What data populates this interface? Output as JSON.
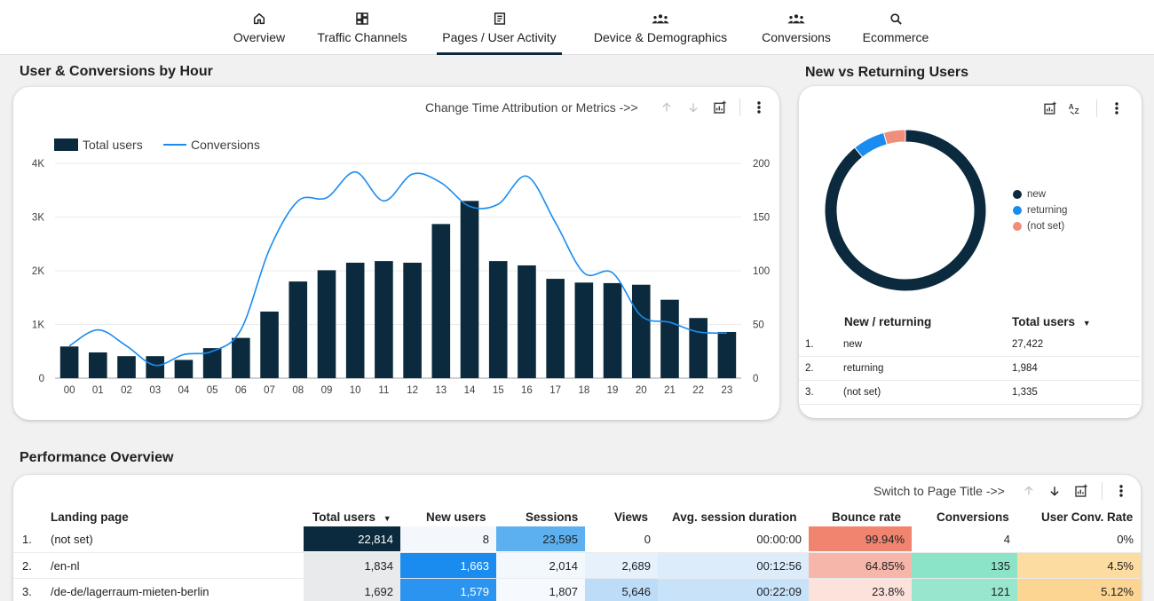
{
  "nav": {
    "tabs": [
      {
        "label": "Overview",
        "icon": "home-icon"
      },
      {
        "label": "Traffic Channels",
        "icon": "dashboard-icon"
      },
      {
        "label": "Pages / User Activity",
        "icon": "article-icon"
      },
      {
        "label": "Device & Demographics",
        "icon": "groups-icon"
      },
      {
        "label": "Conversions",
        "icon": "groups-icon"
      },
      {
        "label": "Ecommerce",
        "icon": "search-icon"
      }
    ],
    "active_index": 2
  },
  "hourly": {
    "title": "User & Conversions by Hour",
    "toolbar_text": "Change Time Attribution or Metrics ->>"
  },
  "donut_section": {
    "title": "New vs Returning Users",
    "table": {
      "col1": "New / returning",
      "col2": "Total users",
      "rows": [
        {
          "rank": "1.",
          "label": "new",
          "value": "27,422"
        },
        {
          "rank": "2.",
          "label": "returning",
          "value": "1,984"
        },
        {
          "rank": "3.",
          "label": "(not set)",
          "value": "1,335"
        }
      ]
    }
  },
  "performance": {
    "title": "Performance Overview",
    "toolbar_text": "Switch to Page Title ->>",
    "columns": [
      "Landing page",
      "Total users",
      "New users",
      "Sessions",
      "Views",
      "Avg. session duration",
      "Bounce rate",
      "Conversions",
      "User Conv. Rate"
    ],
    "rows": [
      {
        "rank": "1.",
        "page": "(not set)",
        "total_users": "22,814",
        "new_users": "8",
        "sessions": "23,595",
        "views": "0",
        "avg_duration": "00:00:00",
        "bounce_rate": "99.94%",
        "conversions": "4",
        "conv_rate": "0%"
      },
      {
        "rank": "2.",
        "page": "/en-nl",
        "total_users": "1,834",
        "new_users": "1,663",
        "sessions": "2,014",
        "views": "2,689",
        "avg_duration": "00:12:56",
        "bounce_rate": "64.85%",
        "conversions": "135",
        "conv_rate": "4.5%"
      },
      {
        "rank": "3.",
        "page": "/de-de/lagerraum-mieten-berlin",
        "total_users": "1,692",
        "new_users": "1,579",
        "sessions": "1,807",
        "views": "5,646",
        "avg_duration": "00:22:09",
        "bounce_rate": "23.8%",
        "conversions": "121",
        "conv_rate": "5.12%"
      }
    ],
    "cell_colors": [
      [
        "#0b2a3d",
        "#f4f8fd",
        "#5db0f0",
        "#ffffff",
        "#ffffff",
        "#f1846e",
        "#ffffff",
        "#ffffff"
      ],
      [
        "#e8eaeb",
        "#1a8cf0",
        "#f3f8fd",
        "#e6f1fc",
        "#dcecfb",
        "#f6b7aa",
        "#8be3c8",
        "#fcdca0"
      ],
      [
        "#e8eaeb",
        "#2a94f0",
        "#f6fafe",
        "#bcdcf8",
        "#c7e2f9",
        "#fde2dc",
        "#97e6cd",
        "#fcd592"
      ]
    ]
  },
  "colors": {
    "bar": "#0b2a3d",
    "line": "#1a8cf0",
    "new": "#0b2a3d",
    "returning": "#1a8cf0",
    "notset": "#ef8f7b"
  },
  "chart_data": [
    {
      "type": "bar",
      "title": "User & Conversions by Hour",
      "categories": [
        "00",
        "01",
        "02",
        "03",
        "04",
        "05",
        "06",
        "07",
        "08",
        "09",
        "10",
        "11",
        "12",
        "13",
        "14",
        "15",
        "16",
        "17",
        "18",
        "19",
        "20",
        "21",
        "22",
        "23"
      ],
      "series": [
        {
          "name": "Total users",
          "type": "bar",
          "axis": "left",
          "values": [
            590,
            480,
            410,
            410,
            340,
            560,
            750,
            1240,
            1800,
            2010,
            2150,
            2180,
            2150,
            2870,
            3300,
            2180,
            2100,
            1850,
            1780,
            1770,
            1740,
            1460,
            1120,
            860
          ]
        },
        {
          "name": "Conversions",
          "type": "line",
          "axis": "right",
          "values": [
            30,
            45,
            30,
            12,
            22,
            25,
            45,
            120,
            165,
            168,
            192,
            165,
            190,
            182,
            160,
            162,
            188,
            145,
            98,
            98,
            58,
            52,
            43,
            42
          ]
        }
      ],
      "y_left": {
        "ticks": [
          "0",
          "1K",
          "2K",
          "3K",
          "4K"
        ],
        "range": [
          0,
          4000
        ]
      },
      "y_right": {
        "ticks": [
          "0",
          "50",
          "100",
          "150",
          "200"
        ],
        "range": [
          0,
          200
        ]
      },
      "legend": [
        "Total users",
        "Conversions"
      ]
    },
    {
      "type": "pie",
      "title": "New vs Returning Users",
      "labels": [
        "new",
        "returning",
        "(not set)"
      ],
      "values": [
        27422,
        1984,
        1335
      ]
    }
  ]
}
